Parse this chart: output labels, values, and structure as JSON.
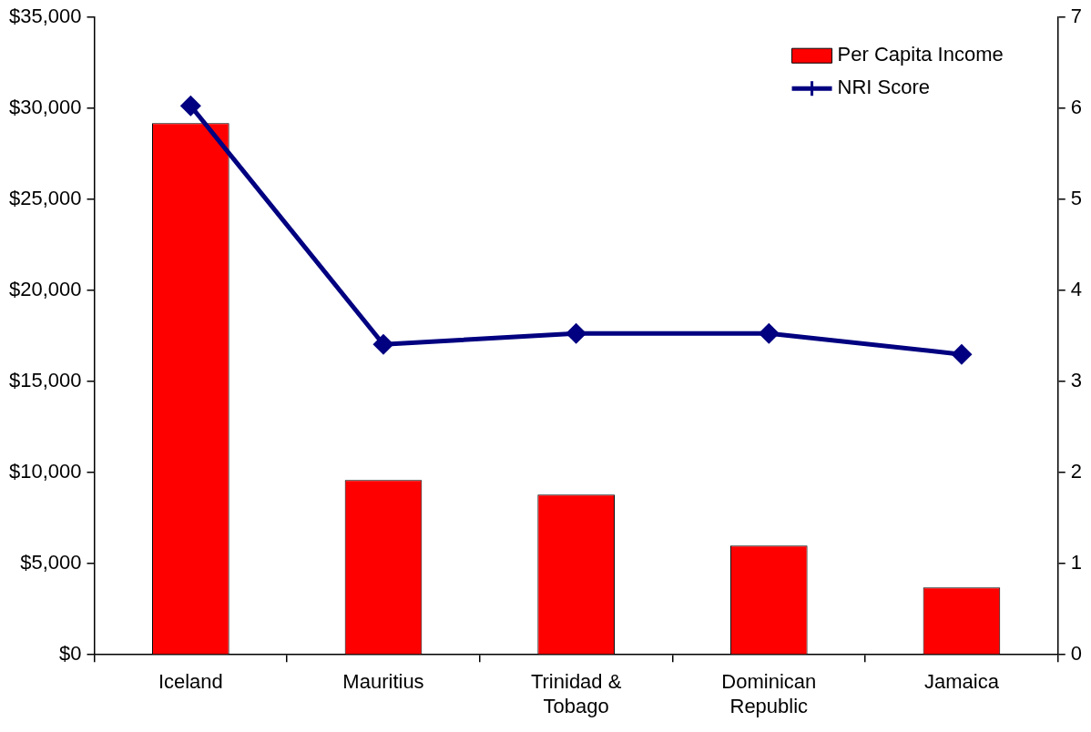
{
  "chart_data": {
    "type": "bar",
    "categories": [
      "Iceland",
      "Mauritius",
      "Trinidad & Tobago",
      "Dominican Republic",
      "Jamaica"
    ],
    "series": [
      {
        "name": "Per Capita Income",
        "color": "#ff0000",
        "values": [
          29200,
          9600,
          8800,
          6000,
          3700
        ]
      },
      {
        "name": "NRI Score",
        "type": "line",
        "axis": "y2",
        "color": "#000080",
        "marker": "diamond",
        "values": [
          6.03,
          3.41,
          3.53,
          3.53,
          3.3
        ]
      }
    ],
    "ylim": [
      0,
      35000
    ],
    "yticks": [
      {
        "value": 0,
        "label": "$0"
      },
      {
        "value": 5000,
        "label": "$5,000"
      },
      {
        "value": 10000,
        "label": "$10,000"
      },
      {
        "value": 15000,
        "label": "$15,000"
      },
      {
        "value": 20000,
        "label": "$20,000"
      },
      {
        "value": 25000,
        "label": "$25,000"
      },
      {
        "value": 30000,
        "label": "$30,000"
      },
      {
        "value": 35000,
        "label": "$35,000"
      }
    ],
    "y2lim": [
      0,
      7
    ],
    "y2ticks": [
      0,
      1,
      2,
      3,
      4,
      5,
      6,
      7
    ],
    "grid": false,
    "legend": "top right"
  }
}
